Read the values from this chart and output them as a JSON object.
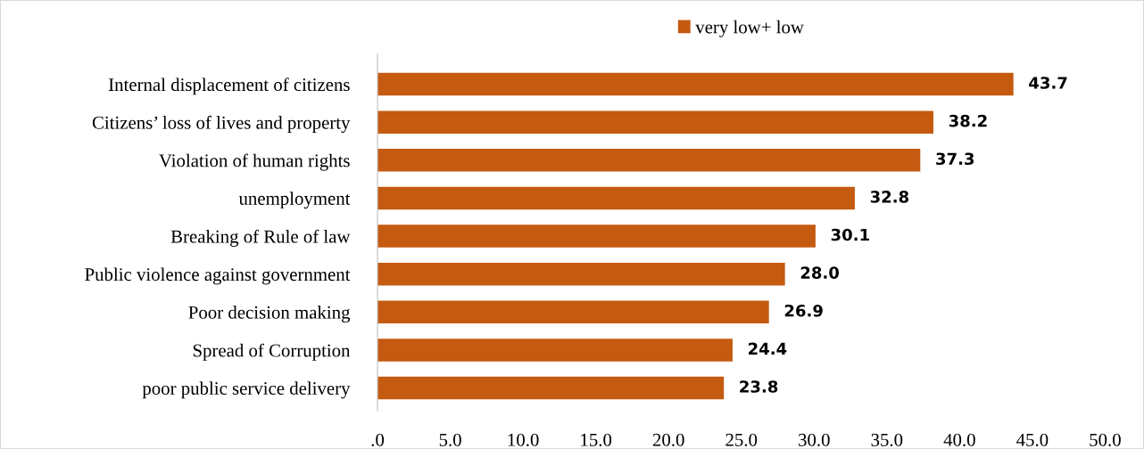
{
  "chart_data": {
    "type": "bar",
    "orientation": "horizontal",
    "categories": [
      "Internal displacement of citizens",
      "Citizens’ loss of lives and property",
      "Violation of human rights",
      "unemployment",
      "Breaking of Rule of law",
      "Public violence against government",
      "Poor decision making",
      "Spread of Corruption",
      "poor public service delivery"
    ],
    "series": [
      {
        "name": "very low+ low",
        "color": "#c55a11",
        "values": [
          43.7,
          38.2,
          37.3,
          32.8,
          30.1,
          28.0,
          26.9,
          24.4,
          23.8
        ],
        "value_labels": [
          "43.7",
          "38.2",
          "37.3",
          "32.8",
          "30.1",
          "28.0",
          "26.9",
          "24.4",
          "23.8"
        ]
      }
    ],
    "xlim": [
      0,
      50
    ],
    "xticks": [
      {
        "value": 0,
        "label": ".0"
      },
      {
        "value": 5,
        "label": "5.0"
      },
      {
        "value": 10,
        "label": "10.0"
      },
      {
        "value": 15,
        "label": "15.0"
      },
      {
        "value": 20,
        "label": "20.0"
      },
      {
        "value": 25,
        "label": "25.0"
      },
      {
        "value": 30,
        "label": "30.0"
      },
      {
        "value": 35,
        "label": "35.0"
      },
      {
        "value": 40,
        "label": "40.0"
      },
      {
        "value": 45,
        "label": "45.0"
      },
      {
        "value": 50,
        "label": "50.0"
      }
    ],
    "grid": false,
    "legend": "top"
  }
}
